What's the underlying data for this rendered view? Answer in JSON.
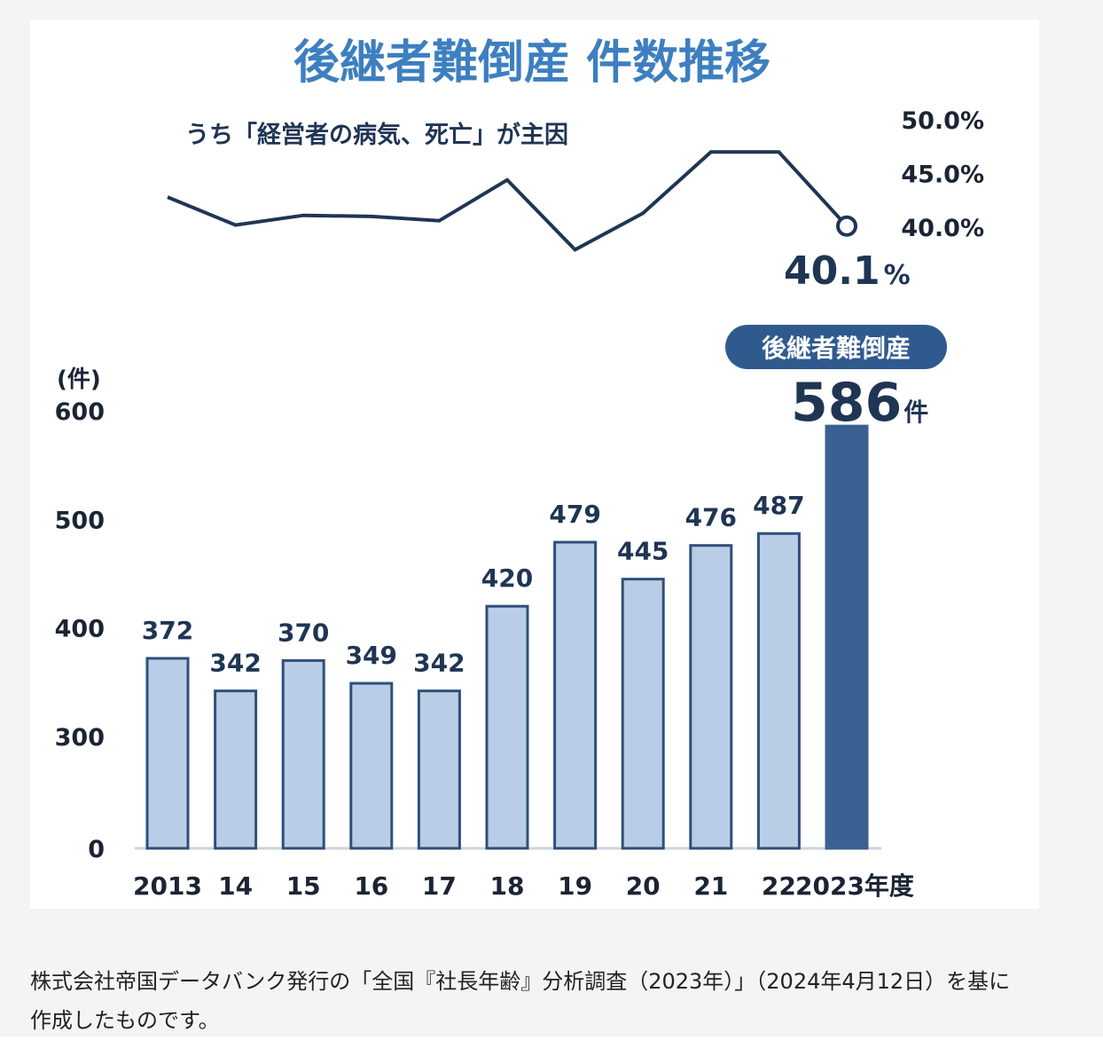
{
  "title": "後継者難倒産 件数推移",
  "colors": {
    "title": "#3d7fc0",
    "line": "#1f3554",
    "bar_fill": "#b9cde6",
    "bar_stroke": "#2f4f7a",
    "highlight_bar": "#3a6192",
    "badge": "#2f5a8e",
    "text": "#1b2433"
  },
  "chart_data": [
    {
      "type": "line",
      "title": "うち「経営者の病気、死亡」が主因",
      "y_tick_labels": [
        "50.0%",
        "45.0%",
        "40.0%"
      ],
      "ylim": [
        40,
        50
      ],
      "x": [
        "2013",
        "14",
        "15",
        "16",
        "17",
        "18",
        "19",
        "20",
        "21",
        "22",
        "2023年度"
      ],
      "values": [
        42.8,
        40.2,
        41.1,
        41.0,
        40.6,
        44.4,
        37.9,
        41.3,
        47.0,
        47.0,
        40.1
      ],
      "last_point_label_value": "40.1",
      "last_point_label_unit": "%"
    },
    {
      "type": "bar",
      "y_unit_label": "(件)",
      "categories": [
        "2013",
        "14",
        "15",
        "16",
        "17",
        "18",
        "19",
        "20",
        "21",
        "22",
        "2023年度"
      ],
      "values": [
        372,
        342,
        370,
        349,
        342,
        420,
        479,
        445,
        476,
        487,
        586
      ],
      "value_labels": [
        "372",
        "342",
        "370",
        "349",
        "342",
        "420",
        "479",
        "445",
        "476",
        "487",
        "586"
      ],
      "y_tick_labels": [
        "600",
        "500",
        "400",
        "300",
        "0"
      ],
      "axis_break": "0 to 300 compressed",
      "highlight": {
        "badge_text": "後継者難倒産",
        "value": "586",
        "unit": "件"
      }
    }
  ],
  "caption": "株式会社帝国データバンク発行の「全国『社長年齢』分析調査（2023年）」（2024年4月12日）を基に作成したものです。"
}
